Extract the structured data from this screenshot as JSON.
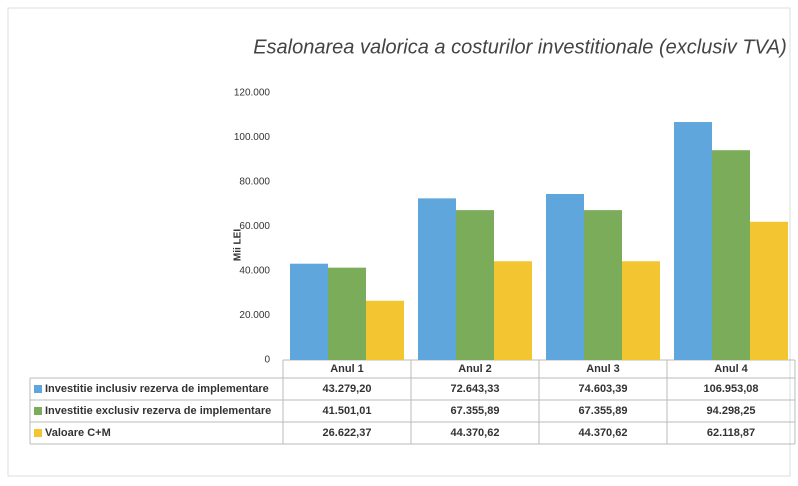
{
  "chart_data": {
    "type": "bar",
    "title": "Esalonarea valorica a costurilor investitionale (exclusiv TVA)",
    "y_label": "Mii LEI",
    "categories": [
      "Anul 1",
      "Anul 2",
      "Anul 3",
      "Anul 4"
    ],
    "series": [
      {
        "name": "Investitie inclusiv rezerva de implementare",
        "color": "#5fa6dc",
        "values": [
          43279.2,
          72643.33,
          74603.39,
          106953.08
        ],
        "value_labels": [
          "43.279,20",
          "72.643,33",
          "74.603,39",
          "106.953,08"
        ]
      },
      {
        "name": "Investitie exclusiv rezerva de implementare",
        "color": "#7aac5a",
        "values": [
          41501.01,
          67355.89,
          67355.89,
          94298.25
        ],
        "value_labels": [
          "41.501,01",
          "67.355,89",
          "67.355,89",
          "94.298,25"
        ]
      },
      {
        "name": "Valoare C+M",
        "color": "#f3c530",
        "values": [
          26622.37,
          44370.62,
          44370.62,
          62118.87
        ],
        "value_labels": [
          "26.622,37",
          "44.370,62",
          "44.370,62",
          "62.118,87"
        ]
      }
    ],
    "ylim": [
      0,
      120000
    ],
    "yticks": [
      0,
      {
        "value": 20000,
        "label": "20.000"
      },
      {
        "value": 40000,
        "label": "40.000"
      },
      {
        "value": 60000,
        "label": "60.000"
      },
      {
        "value": 80000,
        "label": "80.000"
      },
      {
        "value": 100000,
        "label": "100.000"
      },
      {
        "value": 120000,
        "label": "120.000"
      }
    ],
    "grid": false
  }
}
